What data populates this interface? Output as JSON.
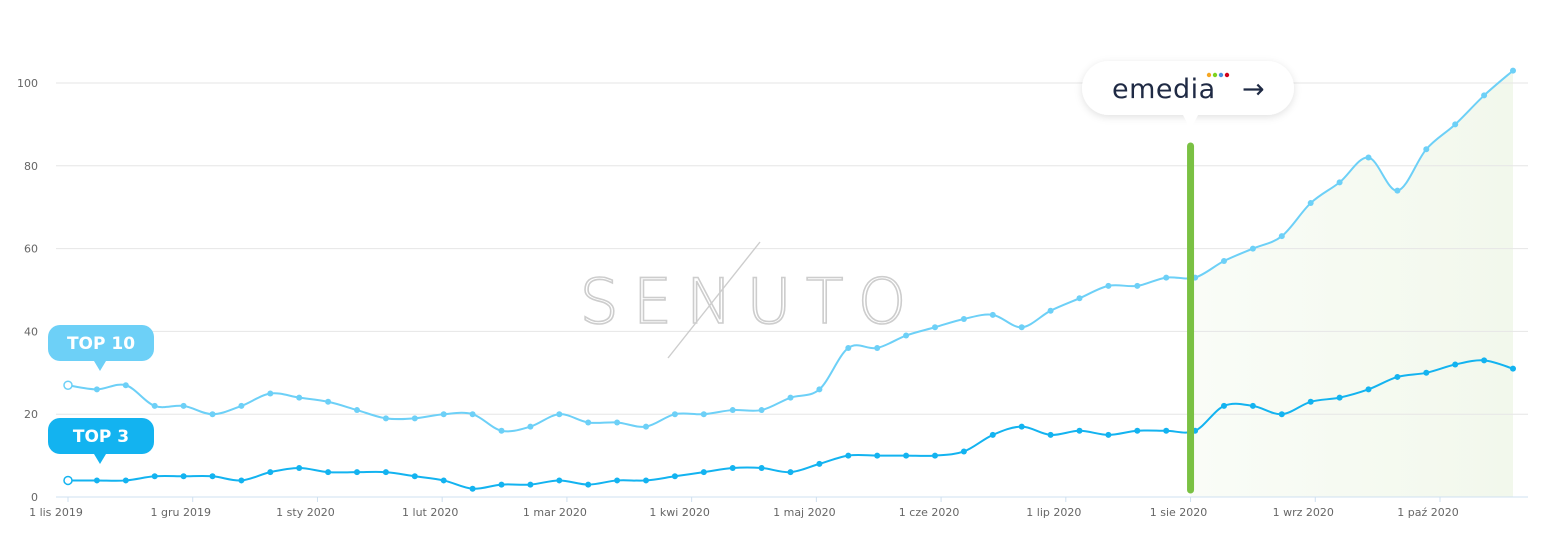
{
  "watermark": "SENUTO",
  "brand": {
    "name": "emedia",
    "arrow": "→",
    "dot_colors": [
      "#f5a623",
      "#7ed321",
      "#4a90e2",
      "#d0021b"
    ]
  },
  "colors": {
    "top10": "#6dd0f7",
    "top3": "#13b3f0",
    "marker": "#7ac143",
    "projection_fill": "#f2f8ec",
    "grid": "#e6e6e6",
    "axis": "#cfe0f0"
  },
  "chart_data": {
    "type": "line",
    "x_tick_labels": [
      "1 lis 2019",
      "1 gru 2019",
      "1 sty 2020",
      "1 lut 2020",
      "1 mar 2020",
      "1 kwi 2020",
      "1 maj 2020",
      "1 cze 2020",
      "1 lip 2020",
      "1 sie 2020",
      "1 wrz 2020",
      "1 paź 2020"
    ],
    "y_ticks": [
      0,
      20,
      40,
      60,
      80,
      100
    ],
    "ylim": [
      0,
      100
    ],
    "grid": true,
    "marker_label": "1 sie 2020",
    "series": [
      {
        "name": "TOP 10",
        "values": [
          27,
          26,
          27,
          22,
          22,
          20,
          22,
          25,
          24,
          23,
          21,
          19,
          19,
          20,
          20,
          16,
          17,
          20,
          18,
          18,
          17,
          20,
          20,
          21,
          21,
          24,
          26,
          36,
          36,
          39,
          41,
          43,
          44,
          41,
          45,
          48,
          51,
          51,
          53,
          53,
          57,
          60,
          63,
          71,
          76,
          82,
          74,
          84,
          90,
          97,
          103
        ]
      },
      {
        "name": "TOP 3",
        "values": [
          4,
          4,
          4,
          5,
          5,
          5,
          4,
          6,
          7,
          6,
          6,
          6,
          5,
          4,
          2,
          3,
          3,
          4,
          3,
          4,
          4,
          5,
          6,
          7,
          7,
          6,
          8,
          10,
          10,
          10,
          10,
          11,
          15,
          17,
          15,
          16,
          15,
          16,
          16,
          16,
          22,
          22,
          20,
          23,
          24,
          26,
          29,
          30,
          32,
          33,
          31
        ]
      }
    ]
  }
}
